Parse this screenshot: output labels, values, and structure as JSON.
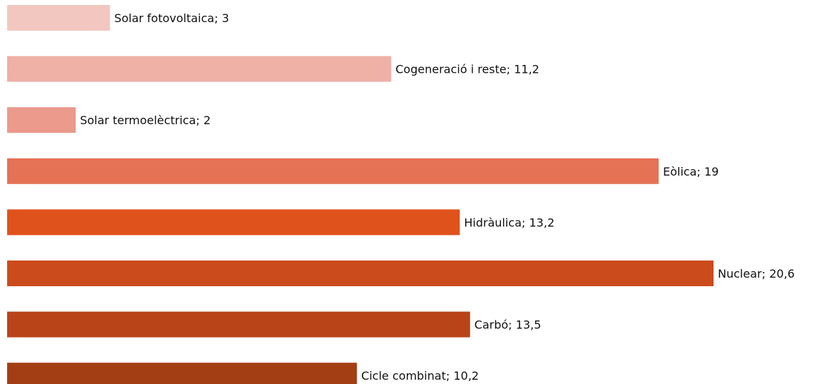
{
  "chart_data": {
    "type": "bar",
    "orientation": "horizontal",
    "categories": [
      "Solar fotovoltaica",
      "Cogeneració i reste",
      "Solar termoelèctrica",
      "Eòlica",
      "Hidràulica",
      "Nuclear",
      "Carbó",
      "Cicle combinat"
    ],
    "values": [
      3,
      11.2,
      2,
      19,
      13.2,
      20.6,
      13.5,
      10.2
    ],
    "value_labels": [
      "3",
      "11,2",
      "2",
      "19",
      "13,2",
      "20,6",
      "13,5",
      "10,2"
    ],
    "label_separator": "; ",
    "colors": [
      "#f2c7c0",
      "#efb0a6",
      "#eb9a8c",
      "#e57255",
      "#e0521b",
      "#cc4b1c",
      "#b94418",
      "#a33d14"
    ],
    "xlim": [
      0,
      20.6
    ]
  }
}
